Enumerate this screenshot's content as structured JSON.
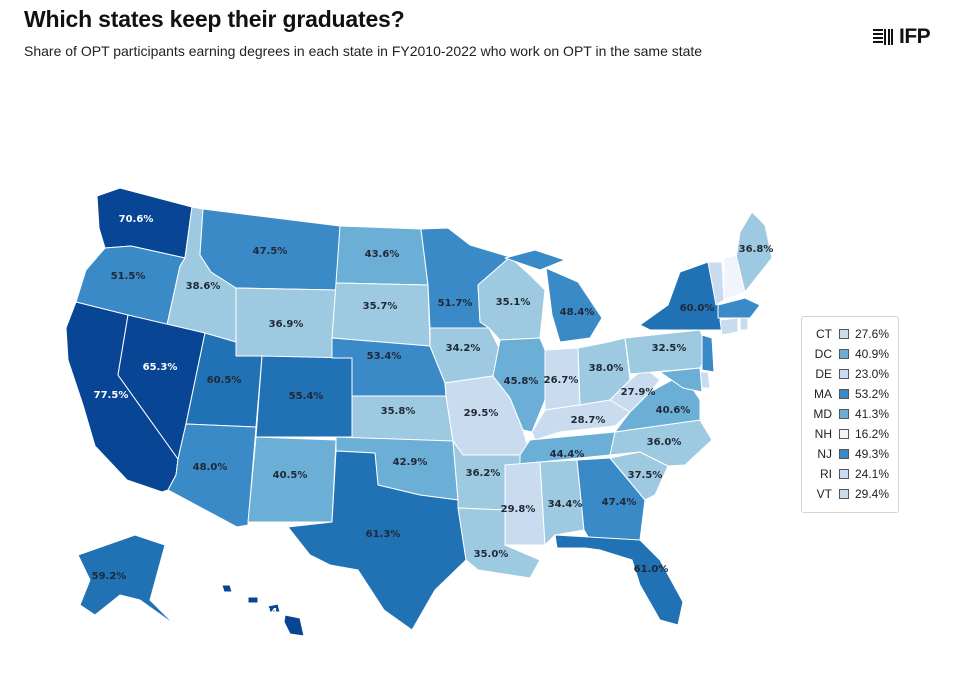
{
  "header": {
    "title": "Which states keep their graduates?",
    "subtitle": "Share of OPT participants earning degrees in each state in FY2010-2022 who work on OPT in the same state",
    "logo_text": "IFP"
  },
  "colors": {
    "scale": [
      "#f0f4fb",
      "#c9dcef",
      "#9ecae1",
      "#6baed6",
      "#3a8ac7",
      "#2171b5",
      "#084594"
    ],
    "border": "#ffffff"
  },
  "map_data": {
    "metric": "Share of OPT participants working on OPT in the same state",
    "states": [
      {
        "id": "WA",
        "label": "70.6%",
        "value": 70.6
      },
      {
        "id": "OR",
        "label": "51.5%",
        "value": 51.5
      },
      {
        "id": "CA",
        "label": "77.5%",
        "value": 77.5
      },
      {
        "id": "ID",
        "label": "38.6%",
        "value": 38.6
      },
      {
        "id": "NV",
        "label": "65.3%",
        "value": 65.3
      },
      {
        "id": "MT",
        "label": "47.5%",
        "value": 47.5
      },
      {
        "id": "WY",
        "label": "36.9%",
        "value": 36.9
      },
      {
        "id": "UT",
        "label": "60.5%",
        "value": 60.5
      },
      {
        "id": "AZ",
        "label": "48.0%",
        "value": 48.0
      },
      {
        "id": "CO",
        "label": "55.4%",
        "value": 55.4
      },
      {
        "id": "NM",
        "label": "40.5%",
        "value": 40.5
      },
      {
        "id": "ND",
        "label": "43.6%",
        "value": 43.6
      },
      {
        "id": "SD",
        "label": "35.7%",
        "value": 35.7
      },
      {
        "id": "NE",
        "label": "53.4%",
        "value": 53.4
      },
      {
        "id": "KS",
        "label": "35.8%",
        "value": 35.8
      },
      {
        "id": "OK",
        "label": "42.9%",
        "value": 42.9
      },
      {
        "id": "TX",
        "label": "61.3%",
        "value": 61.3
      },
      {
        "id": "MN",
        "label": "51.7%",
        "value": 51.7
      },
      {
        "id": "IA",
        "label": "34.2%",
        "value": 34.2
      },
      {
        "id": "MO",
        "label": "29.5%",
        "value": 29.5
      },
      {
        "id": "AR",
        "label": "36.2%",
        "value": 36.2
      },
      {
        "id": "LA",
        "label": "35.0%",
        "value": 35.0
      },
      {
        "id": "WI",
        "label": "35.1%",
        "value": 35.1
      },
      {
        "id": "IL",
        "label": "45.8%",
        "value": 45.8
      },
      {
        "id": "MI",
        "label": "48.4%",
        "value": 48.4
      },
      {
        "id": "IN",
        "label": "26.7%",
        "value": 26.7
      },
      {
        "id": "OH",
        "label": "38.0%",
        "value": 38.0
      },
      {
        "id": "KY",
        "label": "28.7%",
        "value": 28.7
      },
      {
        "id": "TN",
        "label": "44.4%",
        "value": 44.4
      },
      {
        "id": "MS",
        "label": "29.8%",
        "value": 29.8
      },
      {
        "id": "AL",
        "label": "34.4%",
        "value": 34.4
      },
      {
        "id": "GA",
        "label": "47.4%",
        "value": 47.4
      },
      {
        "id": "FL",
        "label": "61.0%",
        "value": 61.0
      },
      {
        "id": "SC",
        "label": "37.5%",
        "value": 37.5
      },
      {
        "id": "NC",
        "label": "36.0%",
        "value": 36.0
      },
      {
        "id": "VA",
        "label": "40.6%",
        "value": 40.6
      },
      {
        "id": "WV",
        "label": "27.9%",
        "value": 27.9
      },
      {
        "id": "PA",
        "label": "32.5%",
        "value": 32.5
      },
      {
        "id": "NY",
        "label": "60.0%",
        "value": 60.0
      },
      {
        "id": "ME",
        "label": "36.8%",
        "value": 36.8
      },
      {
        "id": "AK",
        "label": "59.2%",
        "value": 59.2
      },
      {
        "id": "HI",
        "label": "74.7%",
        "value": 74.7
      }
    ],
    "small_states": [
      {
        "id": "CT",
        "value": 27.6
      },
      {
        "id": "DC",
        "value": 40.9
      },
      {
        "id": "DE",
        "value": 23.0
      },
      {
        "id": "MA",
        "value": 53.2
      },
      {
        "id": "MD",
        "value": 41.3
      },
      {
        "id": "NH",
        "value": 16.2
      },
      {
        "id": "NJ",
        "value": 49.3
      },
      {
        "id": "RI",
        "value": 24.1
      },
      {
        "id": "VT",
        "value": 29.4
      }
    ]
  },
  "legend": {
    "items": [
      {
        "abbr": "CT",
        "value": "27.6%"
      },
      {
        "abbr": "DC",
        "value": "40.9%"
      },
      {
        "abbr": "DE",
        "value": "23.0%"
      },
      {
        "abbr": "MA",
        "value": "53.2%"
      },
      {
        "abbr": "MD",
        "value": "41.3%"
      },
      {
        "abbr": "NH",
        "value": "16.2%"
      },
      {
        "abbr": "NJ",
        "value": "49.3%"
      },
      {
        "abbr": "RI",
        "value": "24.1%"
      },
      {
        "abbr": "VT",
        "value": "29.4%"
      }
    ]
  }
}
